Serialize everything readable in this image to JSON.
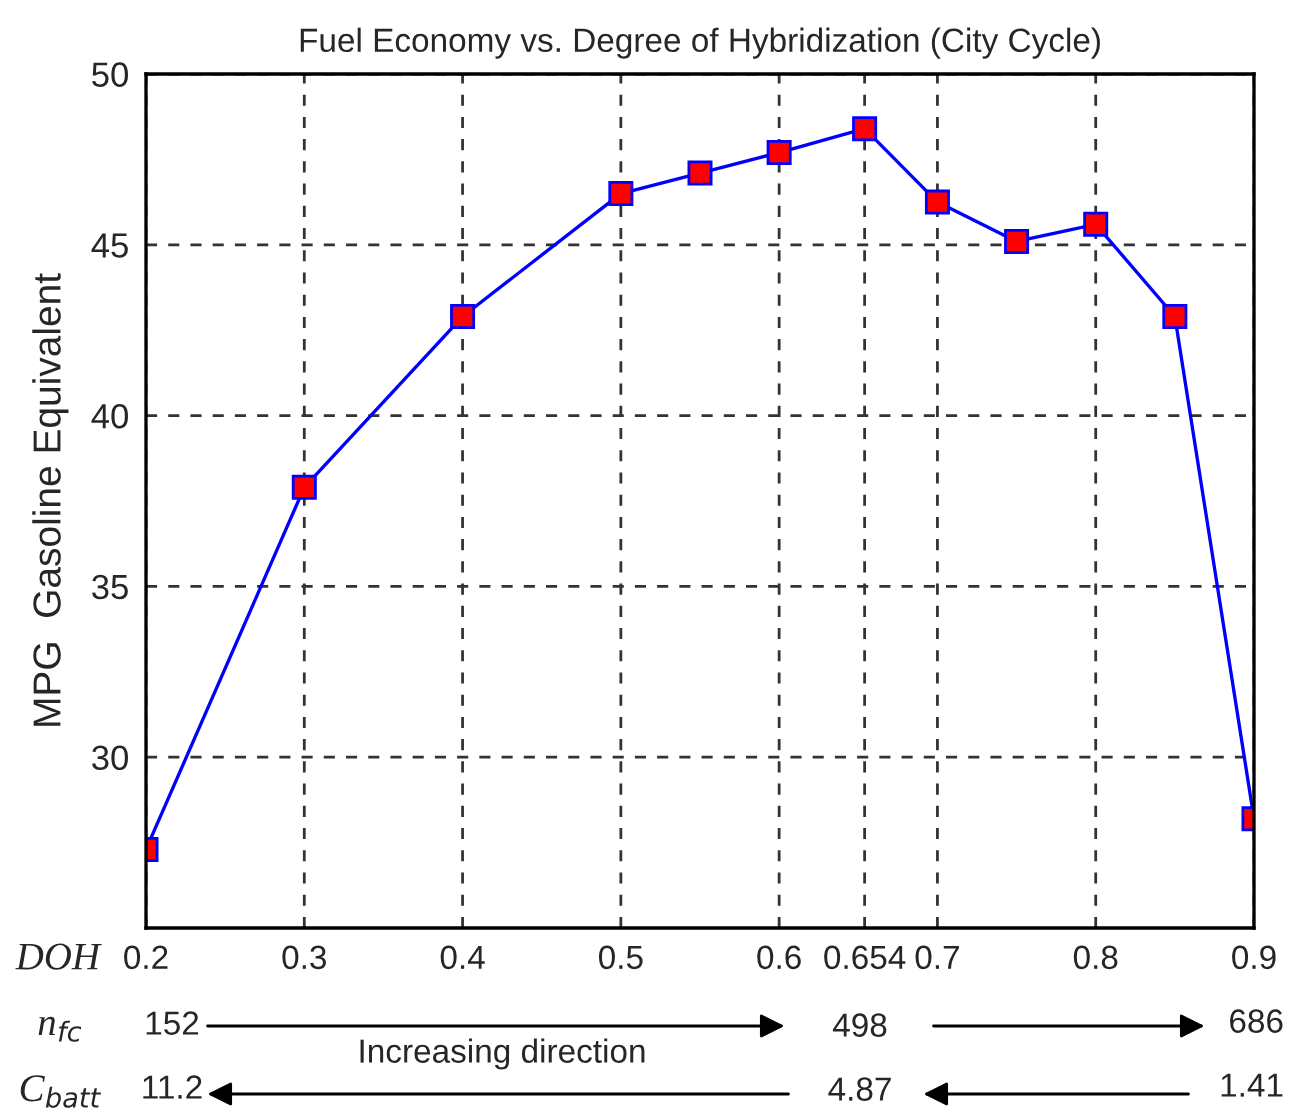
{
  "chart_data": {
    "type": "line",
    "title": "Fuel Economy vs. Degree of Hybridization (City Cycle)",
    "ylabel": "MPG  Gasoline Equivalent",
    "x": [
      0.2,
      0.3,
      0.4,
      0.5,
      0.55,
      0.6,
      0.654,
      0.7,
      0.75,
      0.8,
      0.85,
      0.9
    ],
    "series": [
      {
        "color": "#0000ff",
        "values": [
          27.3,
          37.9,
          42.9,
          46.5,
          47.1,
          47.7,
          48.4,
          46.25,
          45.1,
          45.6,
          42.9,
          28.2
        ]
      }
    ],
    "marker": "square",
    "line_style": "solid",
    "grid": true,
    "xlim": [
      0.2,
      0.9
    ],
    "xticks": [
      0.2,
      0.3,
      0.4,
      0.5,
      0.6,
      0.654,
      0.7,
      0.8,
      0.9
    ],
    "ylim": [
      25,
      50
    ],
    "yticks": [
      30,
      35,
      40,
      45,
      50
    ],
    "annotations": [
      "DOH",
      "n$_{fc}$",
      "152",
      "498",
      "686",
      "Increasing direction",
      "C$_{batt}$",
      "11.2",
      "4.87",
      "1.41"
    ]
  }
}
